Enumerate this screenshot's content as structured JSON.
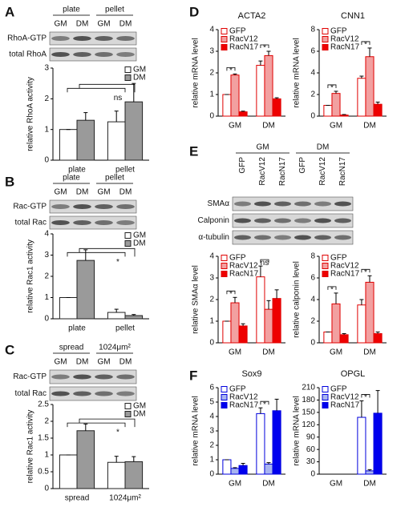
{
  "panel_letters": [
    "A",
    "B",
    "C",
    "D",
    "E",
    "F"
  ],
  "blots": [
    {
      "groups": [
        "plate",
        "pellet"
      ],
      "lanes": [
        "GM",
        "DM",
        "GM",
        "DM"
      ],
      "rows": [
        "RhoA-GTP",
        "total RhoA"
      ]
    },
    {
      "groups": [
        "plate",
        "pellet"
      ],
      "lanes": [
        "GM",
        "DM",
        "GM",
        "DM"
      ],
      "rows": [
        "Rac-GTP",
        "total Rac"
      ]
    },
    {
      "groups": [
        "spread",
        "1024μm²"
      ],
      "lanes": [
        "GM",
        "DM",
        "GM",
        "DM"
      ],
      "rows": [
        "Rac-GTP",
        "total Rac"
      ]
    },
    {
      "groups": [
        "GM",
        "DM"
      ],
      "lanes": [
        "GFP",
        "RacV12",
        "RacN17",
        "GFP",
        "RacV12",
        "RacN17"
      ],
      "rows": [
        "SMAα",
        "Calponin",
        "α-tubulin"
      ]
    }
  ],
  "chart_data": [
    {
      "type": "bar",
      "ylabel": "relative RhoA activity",
      "categories": [
        "plate",
        "pellet"
      ],
      "legend": "upper right",
      "series": [
        {
          "name": "GM",
          "color": "#ffffff",
          "edge_color": "#222222",
          "values": [
            1,
            1.25
          ],
          "errors": [
            0,
            0.35
          ]
        },
        {
          "name": "DM",
          "color": "#9a9a9a",
          "edge_color": "#222222",
          "values": [
            1.3,
            1.9
          ],
          "errors": [
            0.25,
            0.6
          ]
        }
      ],
      "ylim": [
        0,
        3
      ],
      "yticks": [
        0,
        1,
        2,
        3
      ],
      "annotations": [
        "ns"
      ]
    },
    {
      "type": "bar",
      "ylabel": "relative Rac1 activity",
      "categories": [
        "plate",
        "pellet"
      ],
      "legend": "upper right",
      "series": [
        {
          "name": "GM",
          "color": "#ffffff",
          "edge_color": "#222222",
          "values": [
            1,
            0.3
          ],
          "errors": [
            0,
            0.15
          ]
        },
        {
          "name": "DM",
          "color": "#9a9a9a",
          "edge_color": "#222222",
          "values": [
            2.75,
            0.15
          ],
          "errors": [
            0.5,
            0.05
          ]
        }
      ],
      "ylim": [
        0,
        4
      ],
      "yticks": [
        0,
        1,
        2,
        3,
        4
      ],
      "annotations": [
        "*"
      ]
    },
    {
      "type": "bar",
      "ylabel": "relative Rac1 activity",
      "categories": [
        "spread",
        "1024μm²"
      ],
      "legend": "upper right",
      "series": [
        {
          "name": "GM",
          "color": "#ffffff",
          "edge_color": "#222222",
          "values": [
            1,
            0.78
          ],
          "errors": [
            0,
            0.18
          ]
        },
        {
          "name": "DM",
          "color": "#9a9a9a",
          "edge_color": "#222222",
          "values": [
            1.72,
            0.8
          ],
          "errors": [
            0.2,
            0.15
          ]
        }
      ],
      "ylim": [
        0,
        2.5
      ],
      "yticks": [
        0,
        0.5,
        1,
        1.5,
        2,
        2.5
      ],
      "annotations": [
        "*"
      ]
    },
    {
      "type": "bar",
      "title": "ACTA2",
      "ylabel": "relative mRNA level",
      "categories": [
        "GM",
        "DM"
      ],
      "legend": "upper left",
      "series": [
        {
          "name": "GFP",
          "color": "#ffffff",
          "edge_color": "#e00000",
          "values": [
            1,
            2.35
          ],
          "errors": [
            0,
            0.2
          ]
        },
        {
          "name": "RacV12",
          "color": "#f2a0a0",
          "edge_color": "#e00000",
          "values": [
            1.9,
            2.8
          ],
          "errors": [
            0.05,
            0.2
          ]
        },
        {
          "name": "RacN17",
          "color": "#ee0000",
          "edge_color": "#e00000",
          "values": [
            0.2,
            0.8
          ],
          "errors": [
            0.03,
            0.05
          ]
        }
      ],
      "ylim": [
        0,
        4
      ],
      "yticks": [
        0,
        1,
        2,
        3,
        4
      ],
      "annotations": [
        "*",
        "*"
      ]
    },
    {
      "type": "bar",
      "title": "CNN1",
      "ylabel": "relative mRNA level",
      "categories": [
        "GM",
        "DM"
      ],
      "legend": "upper left",
      "series": [
        {
          "name": "GFP",
          "color": "#ffffff",
          "edge_color": "#e00000",
          "values": [
            1,
            3.5
          ],
          "errors": [
            0,
            0.2
          ]
        },
        {
          "name": "RacV12",
          "color": "#f2a0a0",
          "edge_color": "#e00000",
          "values": [
            2.1,
            5.5
          ],
          "errors": [
            0.2,
            0.8
          ]
        },
        {
          "name": "RacN17",
          "color": "#ee0000",
          "edge_color": "#e00000",
          "values": [
            0.1,
            1.1
          ],
          "errors": [
            0.05,
            0.2
          ]
        }
      ],
      "ylim": [
        0,
        8
      ],
      "yticks": [
        0,
        2,
        4,
        6,
        8
      ],
      "annotations": [
        "*",
        "*"
      ]
    },
    {
      "type": "bar",
      "ylabel": "relative SMAα level",
      "categories": [
        "GM",
        "DM"
      ],
      "legend": "upper left",
      "series": [
        {
          "name": "GFP",
          "color": "#ffffff",
          "edge_color": "#e00000",
          "values": [
            1,
            3.05
          ],
          "errors": [
            0,
            0.5
          ]
        },
        {
          "name": "RacV12",
          "color": "#f2a0a0",
          "edge_color": "#e00000",
          "values": [
            1.85,
            1.55
          ],
          "errors": [
            0.25,
            0.4
          ]
        },
        {
          "name": "RacN17",
          "color": "#ee0000",
          "edge_color": "#e00000",
          "values": [
            0.78,
            2.05
          ],
          "errors": [
            0.1,
            0.4
          ]
        }
      ],
      "ylim": [
        0,
        4
      ],
      "yticks": [
        0,
        1,
        2,
        3,
        4
      ],
      "annotations": [
        "*",
        "ns"
      ]
    },
    {
      "type": "bar",
      "ylabel": "relative calponin level",
      "categories": [
        "GM",
        "DM"
      ],
      "legend": "upper left",
      "series": [
        {
          "name": "GFP",
          "color": "#ffffff",
          "edge_color": "#e00000",
          "values": [
            1,
            3.5
          ],
          "errors": [
            0,
            0.5
          ]
        },
        {
          "name": "RacV12",
          "color": "#f2a0a0",
          "edge_color": "#e00000",
          "values": [
            3.6,
            5.6
          ],
          "errors": [
            1.0,
            0.6
          ]
        },
        {
          "name": "RacN17",
          "color": "#ee0000",
          "edge_color": "#e00000",
          "values": [
            0.75,
            0.85
          ],
          "errors": [
            0.1,
            0.15
          ]
        }
      ],
      "ylim": [
        0,
        8
      ],
      "yticks": [
        0,
        2,
        4,
        6,
        8
      ],
      "annotations": [
        "*",
        "*"
      ]
    },
    {
      "type": "bar",
      "title": "Sox9",
      "ylabel": "relative mRNA level",
      "categories": [
        "GM",
        "DM"
      ],
      "legend": "upper left",
      "series": [
        {
          "name": "GFP",
          "color": "#ffffff",
          "edge_color": "#0000dd",
          "values": [
            1,
            4.2
          ],
          "errors": [
            0,
            0.4
          ]
        },
        {
          "name": "RacV12",
          "color": "#a8b4f0",
          "edge_color": "#0000dd",
          "values": [
            0.4,
            0.7
          ],
          "errors": [
            0.05,
            0.1
          ]
        },
        {
          "name": "RacN17",
          "color": "#0000ee",
          "edge_color": "#0000dd",
          "values": [
            0.6,
            4.4
          ],
          "errors": [
            0.15,
            0.8
          ]
        }
      ],
      "ylim": [
        0,
        6
      ],
      "yticks": [
        0,
        1,
        2,
        3,
        4,
        5,
        6
      ],
      "annotations": [
        null,
        "*"
      ]
    },
    {
      "type": "bar",
      "title": "OPGL",
      "ylabel": "relative mRNA level",
      "categories": [
        "GM",
        "DM"
      ],
      "legend": "upper left",
      "series": [
        {
          "name": "GFP",
          "color": "#ffffff",
          "edge_color": "#0000dd",
          "values": [
            0,
            138
          ],
          "errors": [
            0,
            40
          ]
        },
        {
          "name": "RacV12",
          "color": "#a8b4f0",
          "edge_color": "#0000dd",
          "values": [
            0,
            8
          ],
          "errors": [
            0,
            3
          ]
        },
        {
          "name": "RacN17",
          "color": "#0000ee",
          "edge_color": "#0000dd",
          "values": [
            0,
            148
          ],
          "errors": [
            0,
            55
          ]
        }
      ],
      "ylim": [
        0,
        210
      ],
      "yticks": [
        0,
        30,
        60,
        90,
        120,
        150,
        180,
        210
      ],
      "annotations": [
        null,
        "*"
      ]
    }
  ]
}
